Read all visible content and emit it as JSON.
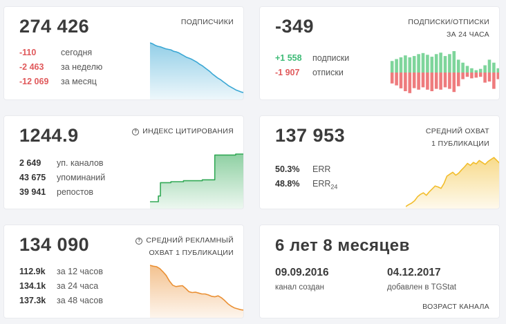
{
  "cards": {
    "subscribers": {
      "value": "274 426",
      "label": "ПОДПИСЧИКИ",
      "stats": [
        {
          "value": "-110",
          "label": "сегодня"
        },
        {
          "value": "-2 463",
          "label": "за неделю"
        },
        {
          "value": "-12 069",
          "label": "за месяц"
        }
      ]
    },
    "subscribe_unsubscribe": {
      "value": "-349",
      "label_line1": "ПОДПИСКИ/ОТПИСКИ",
      "label_line2": "ЗА 24 ЧАСА",
      "stats": [
        {
          "value": "+1 558",
          "label": "подписки"
        },
        {
          "value": "-1 907",
          "label": "отписки"
        }
      ]
    },
    "citation": {
      "value": "1244.9",
      "label": "ИНДЕКС ЦИТИРОВАНИЯ",
      "stats": [
        {
          "value": "2 649",
          "label": "уп. каналов"
        },
        {
          "value": "43 675",
          "label": "упоминаний"
        },
        {
          "value": "39 941",
          "label": "репостов"
        }
      ]
    },
    "avg_reach": {
      "value": "137 953",
      "label_line1": "СРЕДНИЙ ОХВАТ",
      "label_line2": "1 ПУБЛИКАЦИИ",
      "stats": [
        {
          "value": "50.3%",
          "label": "ERR",
          "sub": ""
        },
        {
          "value": "48.8%",
          "label": "ERR",
          "sub": "24"
        }
      ]
    },
    "ad_reach": {
      "value": "134 090",
      "label_line1": "СРЕДНИЙ РЕКЛАМНЫЙ",
      "label_line2": "ОХВАТ 1 ПУБЛИКАЦИИ",
      "stats": [
        {
          "value": "112.9k",
          "label": "за 12 часов"
        },
        {
          "value": "134.1k",
          "label": "за 24 часа"
        },
        {
          "value": "137.3k",
          "label": "за 48 часов"
        }
      ]
    },
    "age": {
      "value": "6 лет 8 месяцев",
      "created_date": "09.09.2016",
      "created_label": "канал создан",
      "added_date": "04.12.2017",
      "added_label": "добавлен в TGStat",
      "label": "ВОЗРАСТ КАНАЛА"
    }
  },
  "colors": {
    "subscribers_line": "#3aa7d4",
    "green_bar": "#7ed59b",
    "red_bar": "#ee7b7d",
    "citation_line": "#32a956",
    "reach_line": "#f2bd2c",
    "ad_line": "#ea9034"
  },
  "sparklines": {
    "subscribers": [
      1.0,
      0.98,
      0.95,
      0.93,
      0.92,
      0.9,
      0.88,
      0.87,
      0.86,
      0.83,
      0.82,
      0.8,
      0.77,
      0.74,
      0.71,
      0.69,
      0.67,
      0.64,
      0.61,
      0.57,
      0.54,
      0.5,
      0.46,
      0.42,
      0.37,
      0.33,
      0.29,
      0.26,
      0.22,
      0.18,
      0.14,
      0.11,
      0.08,
      0.05,
      0.03,
      0.01,
      0.0
    ],
    "subscribe_bars": [
      {
        "up": 0.54,
        "down": 0.51
      },
      {
        "up": 0.63,
        "down": 0.6
      },
      {
        "up": 0.71,
        "down": 0.74
      },
      {
        "up": 0.8,
        "down": 0.87
      },
      {
        "up": 0.71,
        "down": 0.96
      },
      {
        "up": 0.77,
        "down": 0.73
      },
      {
        "up": 0.86,
        "down": 0.8
      },
      {
        "up": 0.91,
        "down": 0.69
      },
      {
        "up": 0.83,
        "down": 0.8
      },
      {
        "up": 0.74,
        "down": 0.87
      },
      {
        "up": 0.86,
        "down": 0.76
      },
      {
        "up": 0.93,
        "down": 0.8
      },
      {
        "up": 0.77,
        "down": 0.69
      },
      {
        "up": 0.86,
        "down": 0.76
      },
      {
        "up": 1.0,
        "down": 0.91
      },
      {
        "up": 0.6,
        "down": 0.64
      },
      {
        "up": 0.46,
        "down": 0.31
      },
      {
        "up": 0.31,
        "down": 0.2
      },
      {
        "up": 0.2,
        "down": 0.27
      },
      {
        "up": 0.11,
        "down": 0.24
      },
      {
        "up": 0.17,
        "down": 0.2
      },
      {
        "up": 0.34,
        "down": 0.47
      },
      {
        "up": 0.6,
        "down": 0.42
      },
      {
        "up": 0.46,
        "down": 0.76
      },
      {
        "up": 0.2,
        "down": 0.31
      }
    ],
    "citation": [
      0.0,
      0.0,
      0.0,
      0.0,
      0.12,
      0.4,
      0.4,
      0.4,
      0.4,
      0.4,
      0.42,
      0.42,
      0.42,
      0.42,
      0.42,
      0.42,
      0.44,
      0.44,
      0.44,
      0.44,
      0.44,
      0.44,
      0.44,
      0.44,
      0.44,
      0.46,
      0.46,
      0.46,
      0.46,
      0.46,
      0.46,
      0.98,
      0.98,
      0.98,
      0.98,
      0.98,
      0.98,
      0.98,
      0.98,
      0.98,
      0.98,
      1.0,
      1.0,
      1.0,
      1.0,
      1.0
    ],
    "avg_reach": [
      0.0,
      0.04,
      0.07,
      0.12,
      0.2,
      0.25,
      0.28,
      0.23,
      0.3,
      0.36,
      0.42,
      0.4,
      0.37,
      0.47,
      0.62,
      0.66,
      0.7,
      0.64,
      0.68,
      0.75,
      0.81,
      0.88,
      0.84,
      0.9,
      0.87,
      0.94,
      0.9,
      0.86,
      0.92,
      0.96,
      1.0,
      0.94,
      0.88
    ],
    "ad_reach": [
      1.0,
      0.98,
      0.97,
      0.93,
      0.86,
      0.78,
      0.66,
      0.57,
      0.54,
      0.55,
      0.56,
      0.5,
      0.43,
      0.41,
      0.42,
      0.4,
      0.38,
      0.38,
      0.36,
      0.33,
      0.32,
      0.34,
      0.3,
      0.24,
      0.17,
      0.12,
      0.08,
      0.06,
      0.04,
      0.03
    ]
  }
}
